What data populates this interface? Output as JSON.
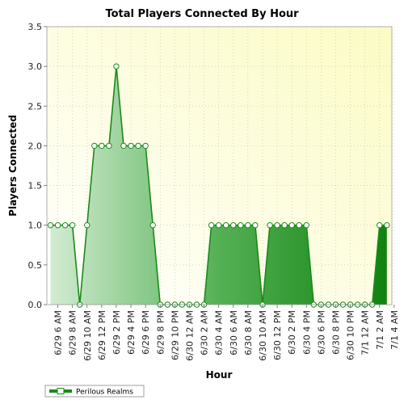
{
  "chart_data": {
    "type": "area",
    "title": "Total Players Connected By Hour",
    "xlabel": "Hour",
    "ylabel": "Players Connected",
    "ylim": [
      0,
      3.5
    ],
    "yticks": [
      "0.0",
      "0.5",
      "1.0",
      "1.5",
      "2.0",
      "2.5",
      "3.0",
      "3.5"
    ],
    "grid": true,
    "legend_position": "bottom-left",
    "x_tick_labels": [
      "6/29 6 AM",
      "6/29 8 AM",
      "6/29 10 AM",
      "6/29 12 PM",
      "6/29 2 PM",
      "6/29 4 PM",
      "6/29 6 PM",
      "6/29 8 PM",
      "6/29 10 PM",
      "6/30 12 AM",
      "6/30 2 AM",
      "6/30 4 AM",
      "6/30 6 AM",
      "6/30 8 AM",
      "6/30 10 AM",
      "6/30 12 PM",
      "6/30 2 PM",
      "6/30 4 PM",
      "6/30 6 PM",
      "6/30 8 PM",
      "6/30 10 PM",
      "7/1 12 AM",
      "7/1 2 AM",
      "7/1 4 AM"
    ],
    "x_start": "6/29 5 AM",
    "x_step_hours": 1,
    "series": [
      {
        "name": "Perilous Realms",
        "color": "#1a8a1a",
        "values": [
          1,
          1,
          1,
          1,
          0,
          1,
          2,
          2,
          2,
          3,
          2,
          2,
          2,
          2,
          1,
          0,
          0,
          0,
          0,
          0,
          0,
          0,
          1,
          1,
          1,
          1,
          1,
          1,
          1,
          0,
          1,
          1,
          1,
          1,
          1,
          1,
          0,
          0,
          0,
          0,
          0,
          0,
          0,
          0,
          0,
          1,
          1
        ]
      }
    ]
  }
}
